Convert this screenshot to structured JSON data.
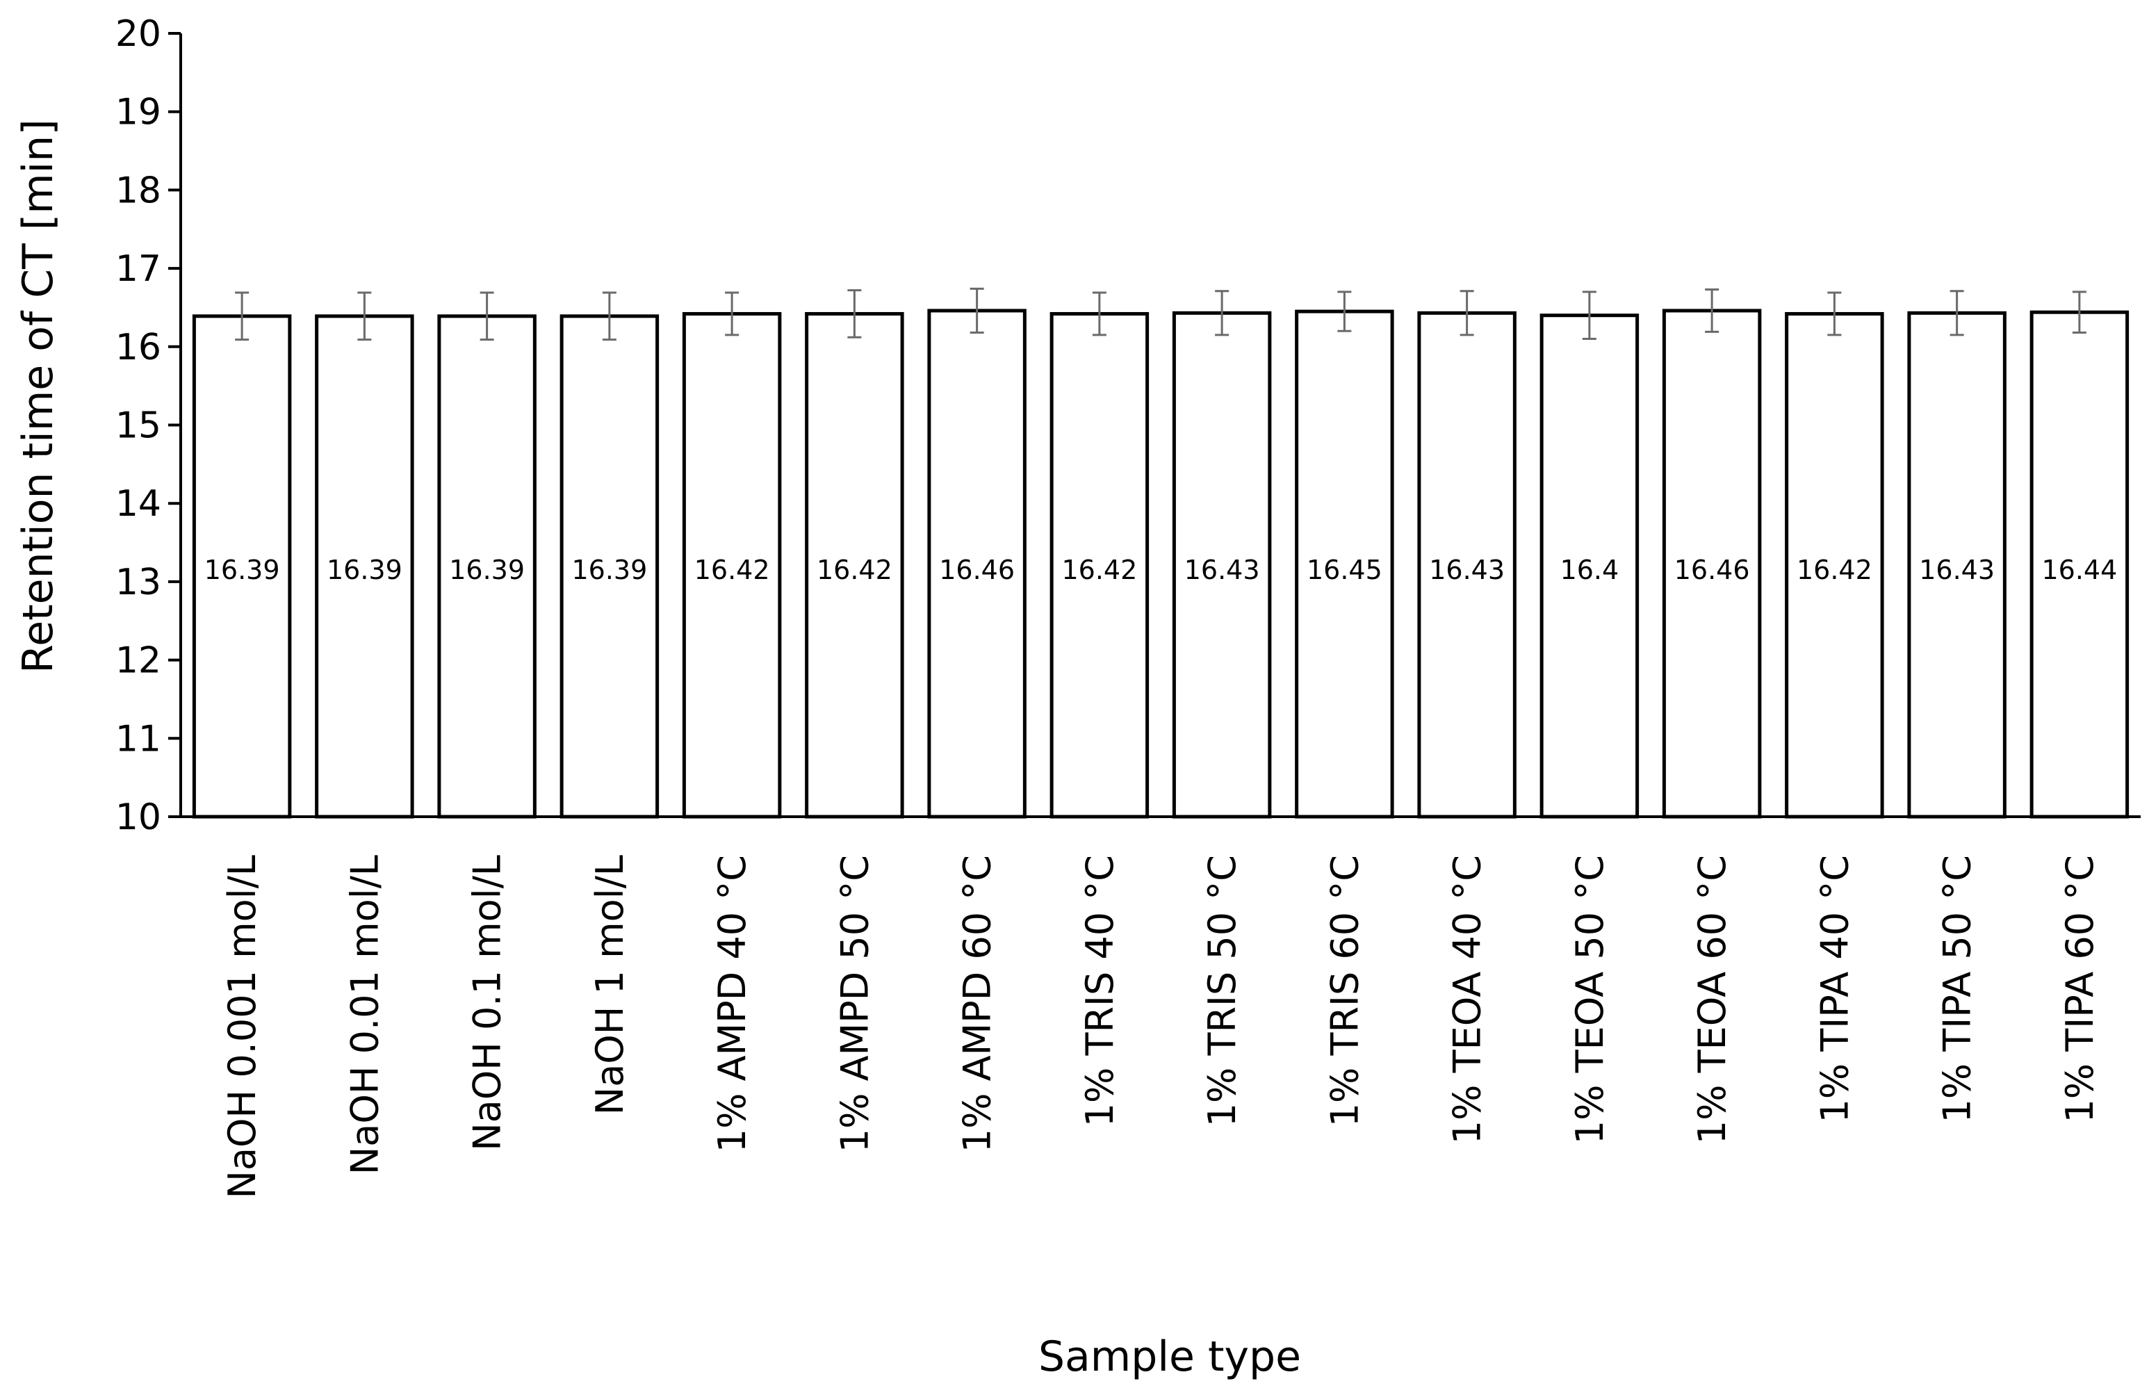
{
  "chart_data": {
    "type": "bar",
    "xlabel": "Sample type",
    "ylabel": "Retention time of CT [min]",
    "ylim": [
      10,
      20
    ],
    "ytick_step": 1,
    "grid": false,
    "legend": "none",
    "bar_fill": "#ffffff",
    "bar_stroke": "#000000",
    "errorbar_color": "#6a6a6a",
    "categories": [
      "NaOH 0.001 mol/L",
      "NaOH 0.01 mol/L",
      "NaOH 0.1 mol/L",
      "NaOH 1 mol/L",
      "1% AMPD 40 °C",
      "1% AMPD 50 °C",
      "1% AMPD 60 °C",
      "1% TRIS 40 °C",
      "1% TRIS 50 °C",
      "1% TRIS 60 °C",
      "1% TEOA 40 °C",
      "1% TEOA 50 °C",
      "1% TEOA 60 °C",
      "1% TIPA 40 °C",
      "1% TIPA 50 °C",
      "1% TIPA 60 °C"
    ],
    "values": [
      16.39,
      16.39,
      16.39,
      16.39,
      16.42,
      16.42,
      16.46,
      16.42,
      16.43,
      16.45,
      16.43,
      16.4,
      16.46,
      16.42,
      16.43,
      16.44
    ],
    "data_labels": [
      "16.39",
      "16.39",
      "16.39",
      "16.39",
      "16.42",
      "16.42",
      "16.46",
      "16.42",
      "16.43",
      "16.45",
      "16.43",
      "16.4",
      "16.46",
      "16.42",
      "16.43",
      "16.44"
    ],
    "errors": [
      0.3,
      0.3,
      0.3,
      0.3,
      0.27,
      0.3,
      0.28,
      0.27,
      0.28,
      0.25,
      0.28,
      0.3,
      0.27,
      0.27,
      0.28,
      0.26
    ]
  }
}
